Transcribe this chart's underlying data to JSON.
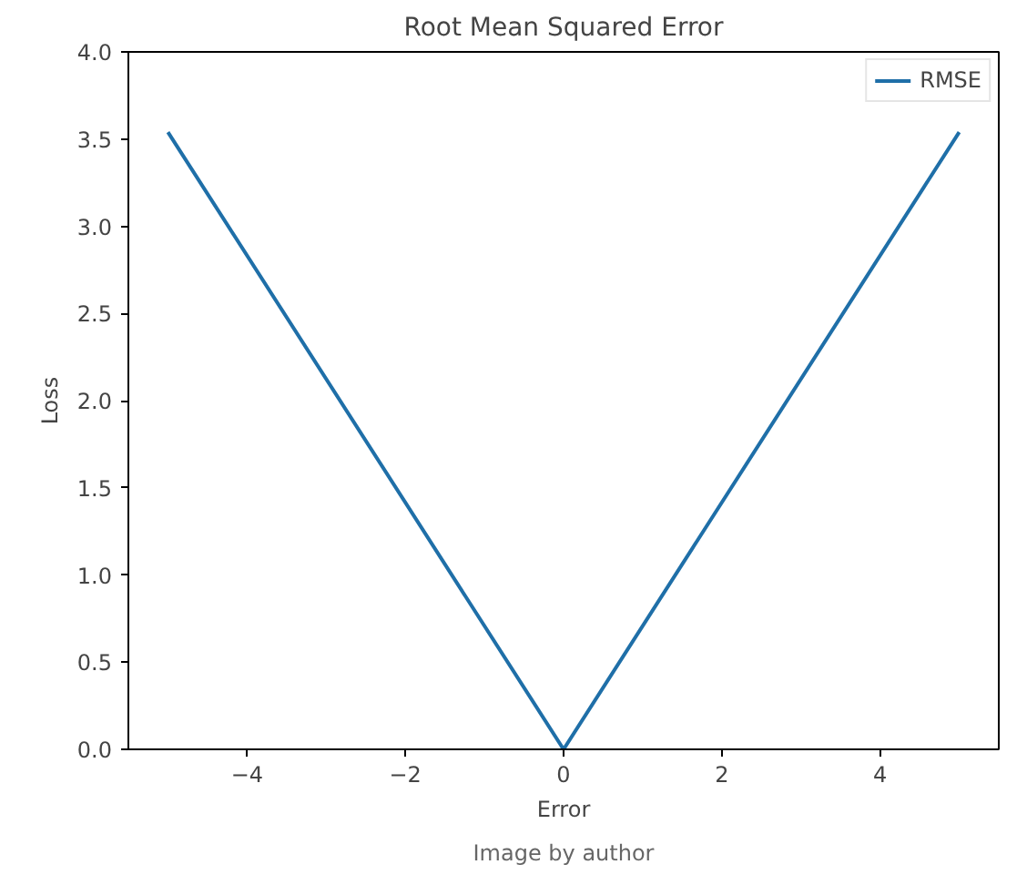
{
  "chart_data": {
    "type": "line",
    "title": "Root Mean Squared Error",
    "xlabel": "Error",
    "ylabel": "Loss",
    "x": [
      -5,
      0,
      5
    ],
    "series": [
      {
        "name": "RMSE",
        "color": "#1f6fa8",
        "values": [
          3.54,
          0,
          3.54
        ]
      }
    ],
    "xlim": [
      -5.5,
      5.5
    ],
    "ylim": [
      0,
      4
    ],
    "xticks": [
      {
        "value": -4,
        "label": "−4"
      },
      {
        "value": -2,
        "label": "−2"
      },
      0,
      2,
      4
    ],
    "yticks": [
      {
        "value": 0,
        "label": "0.0"
      },
      0.5,
      {
        "value": 1,
        "label": "1.0"
      },
      1.5,
      {
        "value": 2,
        "label": "2.0"
      },
      2.5,
      {
        "value": 3,
        "label": "3.0"
      },
      3.5,
      {
        "value": 4,
        "label": "4.0"
      }
    ],
    "grid": false,
    "legend": "top right",
    "marker": "none",
    "line_style": "solid",
    "annotations": [
      "Image by author"
    ]
  }
}
